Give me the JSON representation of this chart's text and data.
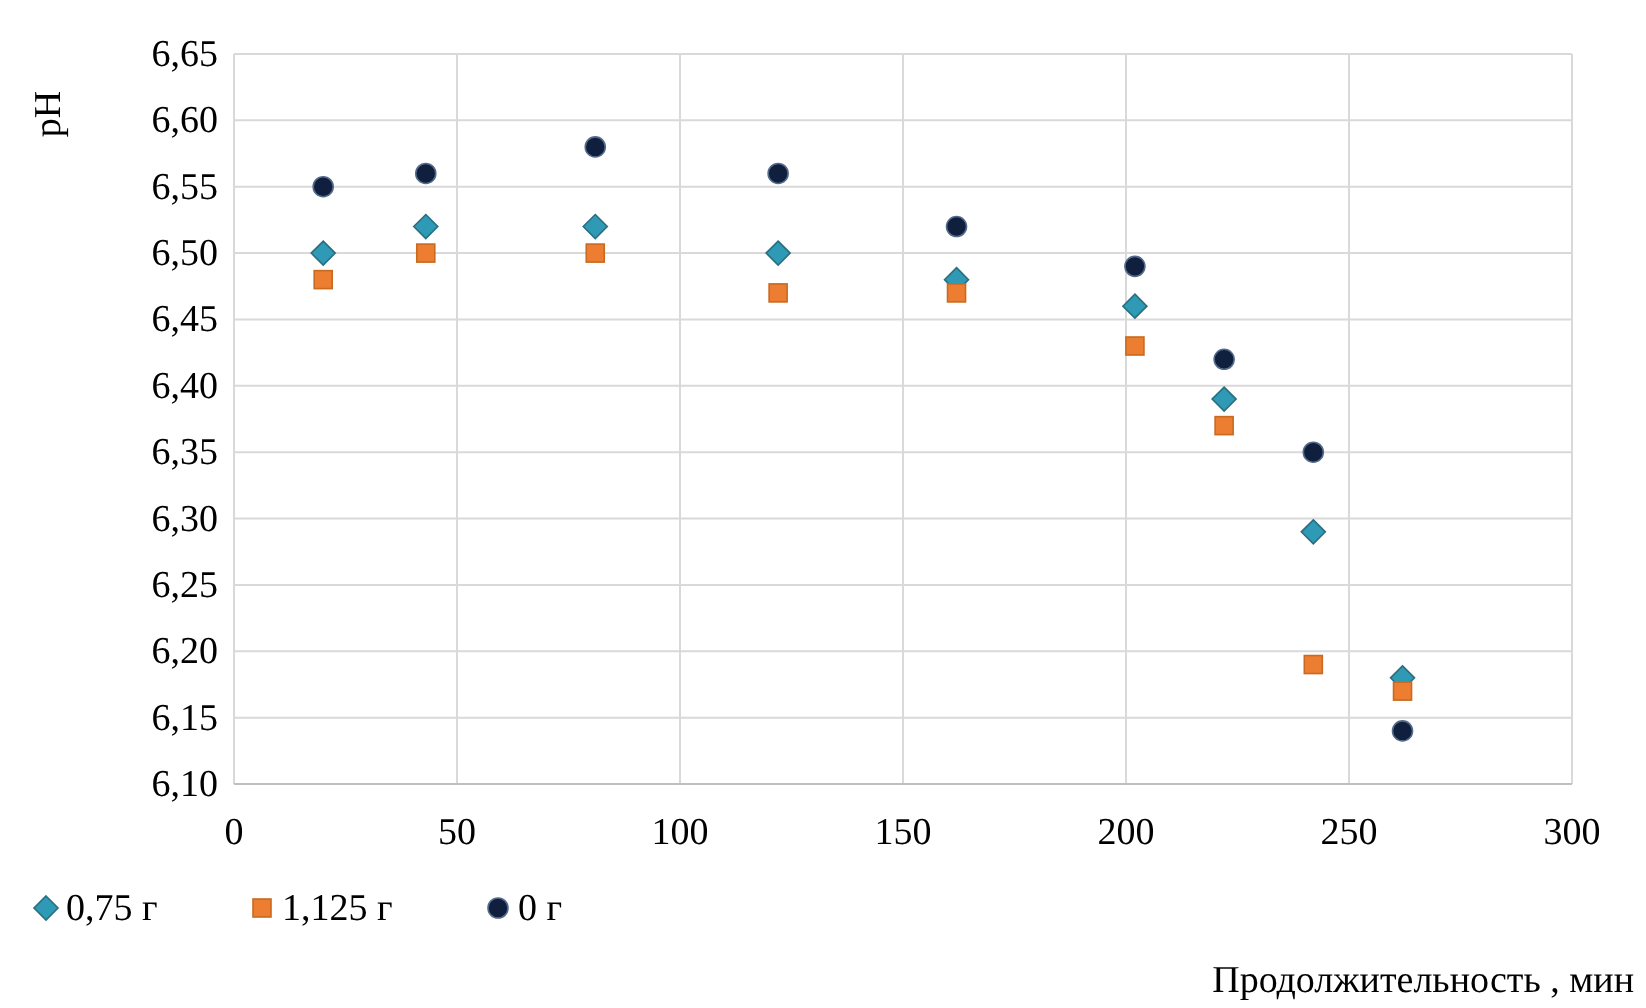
{
  "chart_data": {
    "type": "scatter",
    "xlabel": "Продолжительность , мин",
    "ylabel": "pH",
    "xlim": [
      0,
      300
    ],
    "xticks": [
      0,
      50,
      100,
      150,
      200,
      250,
      300
    ],
    "ylim": [
      6.1,
      6.65
    ],
    "yticks": [
      {
        "value": 6.1,
        "label": "6,10"
      },
      {
        "value": 6.15,
        "label": "6,15"
      },
      {
        "value": 6.2,
        "label": "6,20"
      },
      {
        "value": 6.25,
        "label": "6,25"
      },
      {
        "value": 6.3,
        "label": "6,30"
      },
      {
        "value": 6.35,
        "label": "6,35"
      },
      {
        "value": 6.4,
        "label": "6,40"
      },
      {
        "value": 6.45,
        "label": "6,45"
      },
      {
        "value": 6.5,
        "label": "6,50"
      },
      {
        "value": 6.55,
        "label": "6,55"
      },
      {
        "value": 6.6,
        "label": "6,60"
      },
      {
        "value": 6.65,
        "label": "6,65"
      }
    ],
    "x": [
      20,
      43,
      81,
      122,
      162,
      202,
      222,
      242,
      262
    ],
    "grid": true,
    "legend": "bottom left",
    "series": [
      {
        "name": "0,75 г",
        "color": "#2e9ab5",
        "marker": "diamond",
        "values": [
          6.5,
          6.52,
          6.52,
          6.5,
          6.48,
          6.46,
          6.39,
          6.29,
          6.18
        ]
      },
      {
        "name": "1,125 г",
        "color": "#ed7d31",
        "marker": "square",
        "values": [
          6.48,
          6.5,
          6.5,
          6.47,
          6.47,
          6.43,
          6.37,
          6.19,
          6.17
        ]
      },
      {
        "name": "0 г",
        "color": "#0f1f3d",
        "marker": "circle",
        "values": [
          6.55,
          6.56,
          6.58,
          6.56,
          6.52,
          6.49,
          6.42,
          6.35,
          6.14
        ]
      }
    ]
  }
}
